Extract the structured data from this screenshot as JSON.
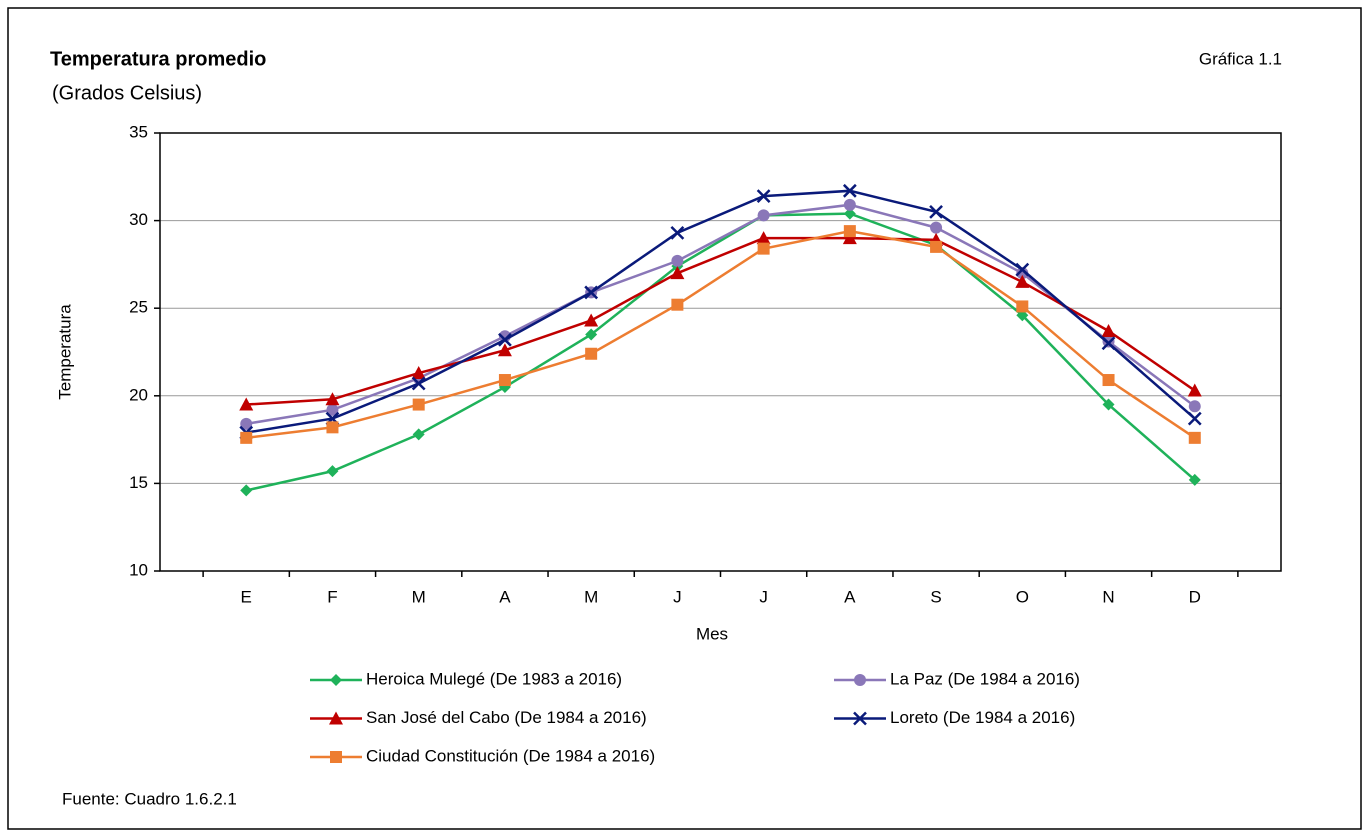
{
  "chart_data": {
    "type": "line",
    "title": "Temperatura promedio",
    "subtitle": "(Grados Celsius)",
    "annotation": "Gráfica 1.1",
    "source": "Fuente: Cuadro 1.6.2.1",
    "x_label": "Mes",
    "y_label": "Temperatura",
    "categories": [
      "E",
      "F",
      "M",
      "A",
      "M",
      "J",
      "J",
      "A",
      "S",
      "O",
      "N",
      "D"
    ],
    "ylim": [
      10,
      35
    ],
    "yticks": [
      10,
      15,
      20,
      25,
      30,
      35
    ],
    "grid": true,
    "series": [
      {
        "name": "Heroica Mulegé (De 1983 a 2016)",
        "color": "#1fb25a",
        "marker": "diamond",
        "values": [
          14.6,
          15.7,
          17.8,
          20.5,
          23.5,
          27.4,
          30.3,
          30.4,
          28.6,
          24.6,
          19.5,
          15.2
        ]
      },
      {
        "name": "La Paz (De 1984 a 2016)",
        "color": "#8a77b8",
        "marker": "circle",
        "values": [
          18.4,
          19.2,
          21.0,
          23.4,
          25.9,
          27.7,
          30.3,
          30.9,
          29.6,
          27.0,
          23.1,
          19.4
        ]
      },
      {
        "name": "San José del Cabo (De 1984 a 2016)",
        "color": "#c00000",
        "marker": "triangle",
        "values": [
          19.5,
          19.8,
          21.3,
          22.6,
          24.3,
          27.0,
          29.0,
          29.0,
          28.9,
          26.5,
          23.7,
          20.3
        ]
      },
      {
        "name": "Loreto (De 1984 a 2016)",
        "color": "#0a1a7a",
        "marker": "x",
        "values": [
          17.9,
          18.7,
          20.7,
          23.2,
          25.9,
          29.3,
          31.4,
          31.7,
          30.5,
          27.2,
          23.0,
          18.7
        ]
      },
      {
        "name": "Ciudad Constitución (De 1984 a 2016)",
        "color": "#ed7d31",
        "marker": "square",
        "values": [
          17.6,
          18.2,
          19.5,
          20.9,
          22.4,
          25.2,
          28.4,
          29.4,
          28.5,
          25.1,
          20.9,
          17.6
        ]
      }
    ]
  }
}
